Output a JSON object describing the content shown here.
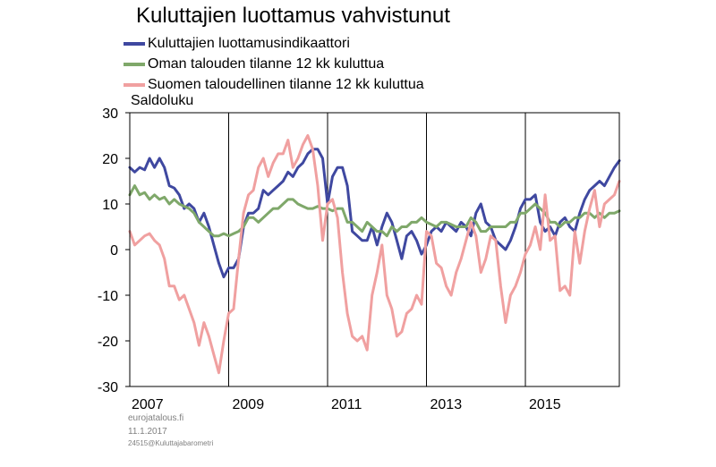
{
  "chart_data": {
    "type": "line",
    "title": "Kuluttajien luottamus vahvistunut",
    "ylabel": "Saldoluku",
    "xlabel": "",
    "ylim": [
      -30,
      30
    ],
    "yticks": [
      30,
      20,
      10,
      0,
      -10,
      -20,
      -30
    ],
    "xlim": [
      2007.0,
      2016.9
    ],
    "xticks": [
      {
        "label": "2007",
        "value": 2007
      },
      {
        "label": "2009",
        "value": 2009
      },
      {
        "label": "2011",
        "value": 2011
      },
      {
        "label": "2013",
        "value": 2013
      },
      {
        "label": "2015",
        "value": 2015
      }
    ],
    "grid": "vertical-major",
    "legend_position": "top-left",
    "series": [
      {
        "name": "Kuluttajien luottamusindikaattori",
        "color": "#3F48A0",
        "x": [
          2007.0,
          2007.1,
          2007.2,
          2007.3,
          2007.4,
          2007.5,
          2007.6,
          2007.7,
          2007.8,
          2007.9,
          2008.0,
          2008.1,
          2008.2,
          2008.3,
          2008.4,
          2008.5,
          2008.6,
          2008.7,
          2008.8,
          2008.9,
          2009.0,
          2009.1,
          2009.2,
          2009.3,
          2009.4,
          2009.5,
          2009.6,
          2009.7,
          2009.8,
          2009.9,
          2010.0,
          2010.1,
          2010.2,
          2010.3,
          2010.4,
          2010.5,
          2010.6,
          2010.7,
          2010.8,
          2010.9,
          2011.0,
          2011.1,
          2011.2,
          2011.3,
          2011.4,
          2011.5,
          2011.6,
          2011.7,
          2011.8,
          2011.9,
          2012.0,
          2012.1,
          2012.2,
          2012.3,
          2012.4,
          2012.5,
          2012.6,
          2012.7,
          2012.8,
          2012.9,
          2013.0,
          2013.1,
          2013.2,
          2013.3,
          2013.4,
          2013.5,
          2013.6,
          2013.7,
          2013.8,
          2013.9,
          2014.0,
          2014.1,
          2014.2,
          2014.3,
          2014.4,
          2014.5,
          2014.6,
          2014.7,
          2014.8,
          2014.9,
          2015.0,
          2015.1,
          2015.2,
          2015.3,
          2015.4,
          2015.5,
          2015.6,
          2015.7,
          2015.8,
          2015.9,
          2016.0,
          2016.1,
          2016.2,
          2016.3,
          2016.4,
          2016.5,
          2016.6,
          2016.7,
          2016.8,
          2016.9
        ],
        "values": [
          18,
          17,
          18,
          17.5,
          20,
          18,
          20,
          18,
          14,
          13.5,
          12,
          9,
          10,
          9,
          6,
          8,
          5,
          1,
          -3,
          -6,
          -4,
          -4,
          -2,
          5,
          8,
          8,
          9,
          13,
          12,
          13,
          14,
          15,
          17,
          16,
          18,
          19,
          21,
          22,
          22,
          20,
          10,
          16,
          18,
          18,
          14,
          4,
          3,
          2,
          2,
          5,
          1,
          5,
          8,
          6,
          2,
          -2,
          3,
          4,
          2,
          -1,
          1,
          4,
          5,
          4,
          6,
          5,
          4,
          6,
          5,
          3,
          8,
          10,
          6,
          5,
          2,
          1,
          0,
          2,
          5,
          9,
          11,
          11,
          12,
          6,
          4,
          5,
          3,
          6,
          7,
          5,
          4,
          8,
          11,
          13,
          14,
          15,
          14,
          16,
          18,
          19.5
        ]
      },
      {
        "name": "Oman talouden tilanne 12 kk kuluttua",
        "color": "#7FA86A",
        "x": [
          2007.0,
          2007.1,
          2007.2,
          2007.3,
          2007.4,
          2007.5,
          2007.6,
          2007.7,
          2007.8,
          2007.9,
          2008.0,
          2008.1,
          2008.2,
          2008.3,
          2008.4,
          2008.5,
          2008.6,
          2008.7,
          2008.8,
          2008.9,
          2009.0,
          2009.1,
          2009.2,
          2009.3,
          2009.4,
          2009.5,
          2009.6,
          2009.7,
          2009.8,
          2009.9,
          2010.0,
          2010.1,
          2010.2,
          2010.3,
          2010.4,
          2010.5,
          2010.6,
          2010.7,
          2010.8,
          2010.9,
          2011.0,
          2011.1,
          2011.2,
          2011.3,
          2011.4,
          2011.5,
          2011.6,
          2011.7,
          2011.8,
          2011.9,
          2012.0,
          2012.1,
          2012.2,
          2012.3,
          2012.4,
          2012.5,
          2012.6,
          2012.7,
          2012.8,
          2012.9,
          2013.0,
          2013.1,
          2013.2,
          2013.3,
          2013.4,
          2013.5,
          2013.6,
          2013.7,
          2013.8,
          2013.9,
          2014.0,
          2014.1,
          2014.2,
          2014.3,
          2014.4,
          2014.5,
          2014.6,
          2014.7,
          2014.8,
          2014.9,
          2015.0,
          2015.1,
          2015.2,
          2015.3,
          2015.4,
          2015.5,
          2015.6,
          2015.7,
          2015.8,
          2015.9,
          2016.0,
          2016.1,
          2016.2,
          2016.3,
          2016.4,
          2016.5,
          2016.6,
          2016.7,
          2016.8,
          2016.9
        ],
        "values": [
          12,
          14,
          12,
          12.5,
          11,
          12,
          11,
          11.5,
          10,
          11,
          10,
          9.5,
          9,
          8,
          6,
          5,
          4,
          3,
          3,
          3.5,
          3,
          3.5,
          4,
          5,
          7,
          7,
          6,
          7,
          8,
          9,
          9,
          10,
          11,
          11,
          10,
          9.5,
          9,
          9,
          9.5,
          9,
          9,
          8.5,
          9,
          9,
          6,
          6,
          5,
          4,
          6,
          5,
          4,
          4,
          3,
          5,
          4,
          5,
          5,
          6,
          6,
          7,
          6,
          5.5,
          5,
          6,
          6,
          5.5,
          5,
          5,
          5,
          7,
          6,
          4,
          4,
          5,
          5,
          5,
          5,
          6,
          6,
          8,
          8,
          9,
          10,
          9,
          8,
          6,
          6,
          5,
          6,
          6,
          7,
          7,
          8,
          8,
          7,
          8,
          7,
          8,
          8,
          8.5
        ]
      },
      {
        "name": "Suomen taloudellinen tilanne 12 kk kuluttua",
        "color": "#F0A0A0",
        "x": [
          2007.0,
          2007.1,
          2007.2,
          2007.3,
          2007.4,
          2007.5,
          2007.6,
          2007.7,
          2007.8,
          2007.9,
          2008.0,
          2008.1,
          2008.2,
          2008.3,
          2008.4,
          2008.5,
          2008.6,
          2008.7,
          2008.8,
          2008.9,
          2009.0,
          2009.1,
          2009.2,
          2009.3,
          2009.4,
          2009.5,
          2009.6,
          2009.7,
          2009.8,
          2009.9,
          2010.0,
          2010.1,
          2010.2,
          2010.3,
          2010.4,
          2010.5,
          2010.6,
          2010.7,
          2010.8,
          2010.9,
          2011.0,
          2011.1,
          2011.2,
          2011.3,
          2011.4,
          2011.5,
          2011.6,
          2011.7,
          2011.8,
          2011.9,
          2012.0,
          2012.1,
          2012.2,
          2012.3,
          2012.4,
          2012.5,
          2012.6,
          2012.7,
          2012.8,
          2012.9,
          2013.0,
          2013.1,
          2013.2,
          2013.3,
          2013.4,
          2013.5,
          2013.6,
          2013.7,
          2013.8,
          2013.9,
          2014.0,
          2014.1,
          2014.2,
          2014.3,
          2014.4,
          2014.5,
          2014.6,
          2014.7,
          2014.8,
          2014.9,
          2015.0,
          2015.1,
          2015.2,
          2015.3,
          2015.4,
          2015.5,
          2015.6,
          2015.7,
          2015.8,
          2015.9,
          2016.0,
          2016.1,
          2016.2,
          2016.3,
          2016.4,
          2016.5,
          2016.6,
          2016.7,
          2016.8,
          2016.9
        ],
        "values": [
          4,
          1,
          2,
          3,
          3.5,
          2,
          1,
          -2,
          -8,
          -8,
          -11,
          -10,
          -13,
          -16,
          -21,
          -16,
          -19,
          -23,
          -27,
          -20,
          -14,
          -13,
          -2,
          8,
          12,
          13,
          18,
          20,
          16,
          19,
          21,
          21,
          24,
          18,
          20,
          23,
          25,
          22,
          14,
          2,
          10,
          11,
          7,
          -5,
          -14,
          -19,
          -20,
          -19,
          -22,
          -10,
          -5,
          1,
          -10,
          -13,
          -19,
          -18,
          -14,
          -13,
          -10,
          -12,
          4,
          3,
          -3,
          -4,
          -8,
          -10,
          -5,
          -2,
          2,
          6,
          3,
          -5,
          -2,
          3,
          2,
          -8,
          -16,
          -10,
          -8,
          -5,
          -1,
          1,
          5,
          0,
          12,
          2,
          3,
          -9,
          -8,
          -10,
          4,
          -3,
          4,
          9,
          13,
          5,
          10,
          11,
          12,
          15
        ]
      }
    ]
  },
  "unit_label": "Saldoluku",
  "source_lines": [
    "eurojatalous.fi",
    "11.1.2017",
    "24515@Kuluttajabarometri"
  ]
}
